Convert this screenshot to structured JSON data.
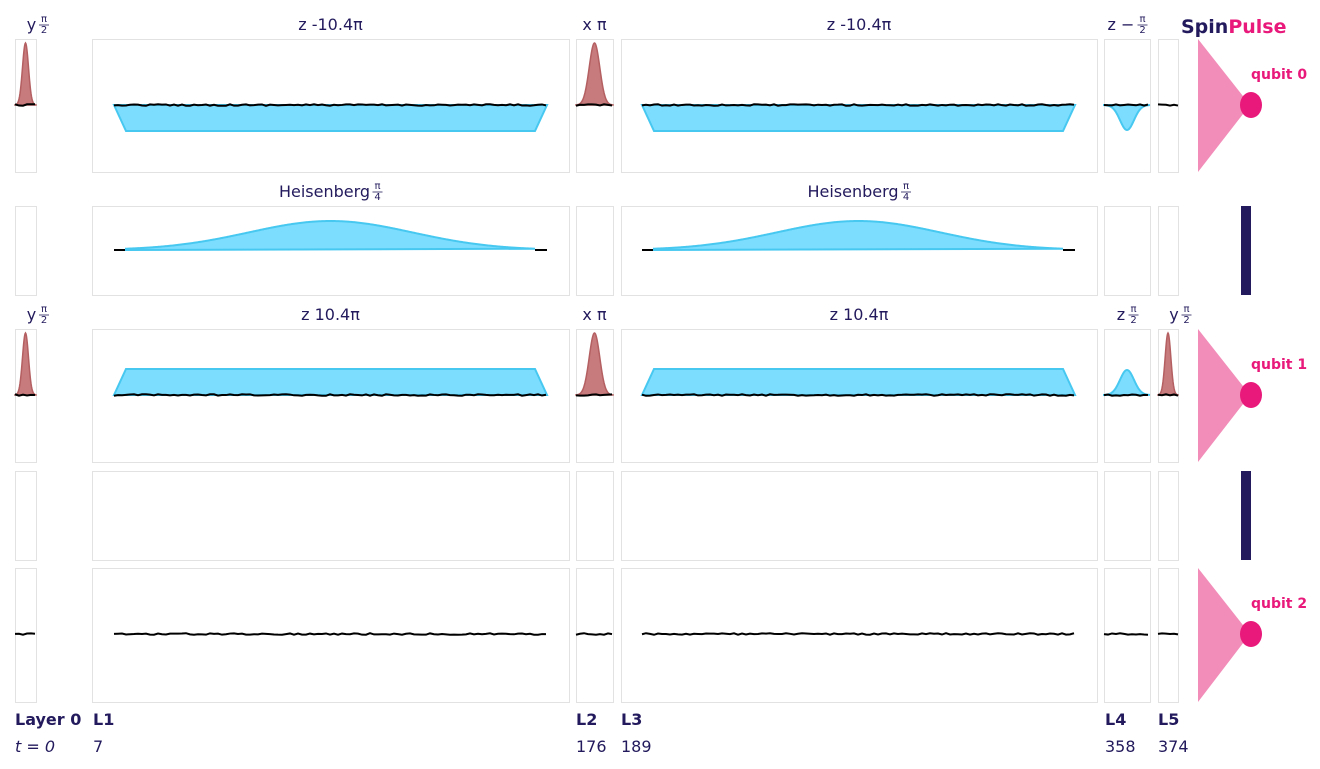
{
  "brand": {
    "part1": "Spin",
    "part2": "Pulse",
    "color1": "#221a5c",
    "color2": "#e8197a"
  },
  "colors": {
    "gaussian": "#c77b7c",
    "z_pulse": "#7dddff",
    "z_edge": "#47c8f0",
    "noise": "#000000",
    "qubit": "#e8197a",
    "qubit_cone": "#f28cb8",
    "coupler": "#221a5c",
    "frame": "#e2e2e2"
  },
  "qubits": [
    {
      "name": "qubit 0",
      "pulses": [
        {
          "cell": "L0",
          "kind": "gaussian",
          "dir": "up",
          "label": {
            "pre": "y",
            "num": "π",
            "den": "2"
          }
        },
        {
          "cell": "L1",
          "kind": "trapezoid",
          "dir": "down",
          "label": {
            "text": "z -10.4π"
          }
        },
        {
          "cell": "L2",
          "kind": "gaussian",
          "dir": "up",
          "label": {
            "text": "x π"
          }
        },
        {
          "cell": "L3",
          "kind": "trapezoid",
          "dir": "down",
          "label": {
            "text": "z -10.4π"
          }
        },
        {
          "cell": "L4",
          "kind": "bump",
          "dir": "down",
          "label": {
            "pre": "z −",
            "num": "π",
            "den": "2"
          }
        },
        {
          "cell": "L5",
          "kind": "flat"
        }
      ]
    },
    {
      "name": "qubit 1",
      "pulses": [
        {
          "cell": "L0",
          "kind": "gaussian",
          "dir": "up",
          "label": {
            "pre": "y",
            "num": "π",
            "den": "2"
          }
        },
        {
          "cell": "L1",
          "kind": "trapezoid",
          "dir": "up",
          "label": {
            "text": "z 10.4π"
          }
        },
        {
          "cell": "L2",
          "kind": "gaussian",
          "dir": "up",
          "label": {
            "text": "x π"
          }
        },
        {
          "cell": "L3",
          "kind": "trapezoid",
          "dir": "up",
          "label": {
            "text": "z 10.4π"
          }
        },
        {
          "cell": "L4",
          "kind": "bump",
          "dir": "up",
          "label": {
            "pre": "z",
            "num": "π",
            "den": "2"
          }
        },
        {
          "cell": "L5",
          "kind": "gaussian",
          "dir": "up",
          "label": {
            "pre": "y",
            "num": "π",
            "den": "2"
          }
        }
      ]
    },
    {
      "name": "qubit 2",
      "pulses": [
        {
          "cell": "L0",
          "kind": "flat"
        },
        {
          "cell": "L1",
          "kind": "flat"
        },
        {
          "cell": "L2",
          "kind": "flat"
        },
        {
          "cell": "L3",
          "kind": "flat"
        },
        {
          "cell": "L4",
          "kind": "flat"
        },
        {
          "cell": "L5",
          "kind": "flat"
        }
      ]
    }
  ],
  "couplings": [
    {
      "pulses": [
        {
          "cell": "L1",
          "kind": "heisenberg",
          "label": {
            "pre": "Heisenberg",
            "num": "π",
            "den": "4"
          }
        },
        {
          "cell": "L3",
          "kind": "heisenberg",
          "label": {
            "pre": "Heisenberg",
            "num": "π",
            "den": "4"
          }
        }
      ]
    },
    {
      "pulses": []
    }
  ],
  "layers": [
    {
      "id": "L0",
      "label": "Layer 0",
      "time": "t = 0"
    },
    {
      "id": "L1",
      "label": "L1",
      "time": "7"
    },
    {
      "id": "L2",
      "label": "L2",
      "time": "176"
    },
    {
      "id": "L3",
      "label": "L3",
      "time": "189"
    },
    {
      "id": "L4",
      "label": "L4",
      "time": "358"
    },
    {
      "id": "L5",
      "label": "L5",
      "time": "374"
    }
  ]
}
